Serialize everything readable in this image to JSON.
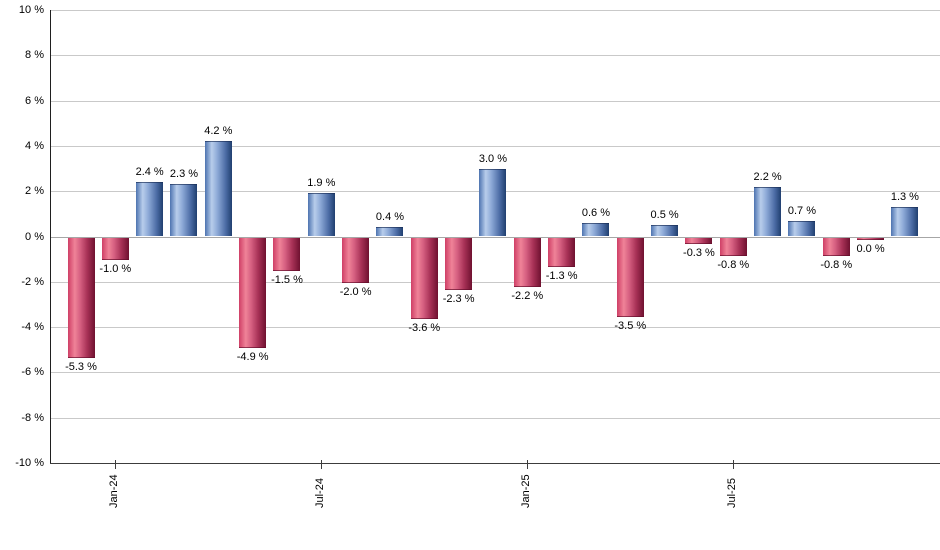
{
  "chart_data": {
    "type": "bar",
    "title": "",
    "xlabel": "",
    "ylabel": "",
    "unit": "%",
    "ylim": [
      -10,
      10
    ],
    "y_tick_step": 2,
    "grid": true,
    "legend": false,
    "y_tick_labels": [
      "10 %",
      "8 %",
      "6 %",
      "4 %",
      "2 %",
      "0 %",
      "-2 %",
      "-4 %",
      "-6 %",
      "-8 %",
      "-10 %"
    ],
    "x_ticks": [
      {
        "label": "Jan-24",
        "bar_index": 1
      },
      {
        "label": "Jul-24",
        "bar_index": 7
      },
      {
        "label": "Jan-25",
        "bar_index": 13
      },
      {
        "label": "Jul-25",
        "bar_index": 19
      }
    ],
    "bars": [
      {
        "value": -5.3,
        "label": "-5.3 %"
      },
      {
        "value": -1.0,
        "label": "-1.0 %"
      },
      {
        "value": 2.4,
        "label": "2.4 %"
      },
      {
        "value": 2.3,
        "label": "2.3 %"
      },
      {
        "value": 4.2,
        "label": "4.2 %"
      },
      {
        "value": -4.9,
        "label": "-4.9 %"
      },
      {
        "value": -1.5,
        "label": "-1.5 %"
      },
      {
        "value": 1.9,
        "label": "1.9 %"
      },
      {
        "value": -2.0,
        "label": "-2.0 %"
      },
      {
        "value": 0.4,
        "label": "0.4 %"
      },
      {
        "value": -3.6,
        "label": "-3.6 %"
      },
      {
        "value": -2.3,
        "label": "-2.3 %"
      },
      {
        "value": 3.0,
        "label": "3.0 %"
      },
      {
        "value": -2.2,
        "label": "-2.2 %"
      },
      {
        "value": -1.3,
        "label": "-1.3 %"
      },
      {
        "value": 0.6,
        "label": "0.6 %"
      },
      {
        "value": -3.5,
        "label": "-3.5 %"
      },
      {
        "value": 0.5,
        "label": "0.5 %"
      },
      {
        "value": -0.3,
        "label": "-0.3 %"
      },
      {
        "value": -0.8,
        "label": "-0.8 %"
      },
      {
        "value": 2.2,
        "label": "2.2 %"
      },
      {
        "value": 0.7,
        "label": "0.7 %"
      },
      {
        "value": -0.8,
        "label": "-0.8 %"
      },
      {
        "value": 0.0,
        "label": "0.0 %"
      },
      {
        "value": 1.3,
        "label": "1.3 %"
      }
    ],
    "colors": {
      "positive_bar": "#6e8fc4",
      "positive_highlight": "#b8cdeb",
      "positive_dark": "#203f70",
      "negative_bar": "#d66081",
      "negative_highlight": "#ef8398",
      "negative_dark": "#6f1130",
      "gridline": "#c9c9c9",
      "zero_line": "#a6a6a6",
      "axis": "#3c3c3c",
      "label_text": "#000000",
      "background": "#ffffff"
    }
  }
}
